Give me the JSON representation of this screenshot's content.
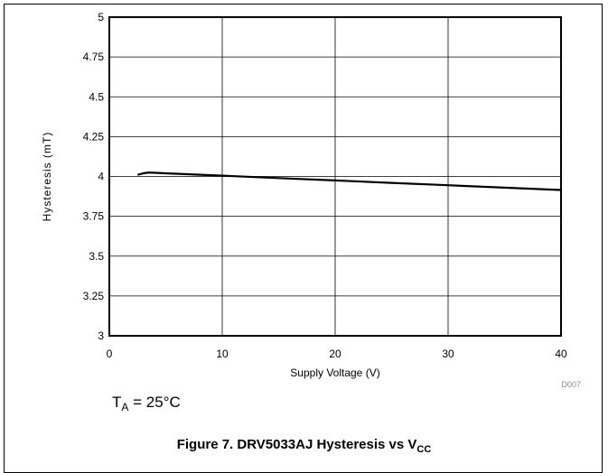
{
  "chart_data": {
    "type": "line",
    "xlabel": "Supply Voltage (V)",
    "ylabel": "Hysteresis (mT)",
    "xlim": [
      0,
      40
    ],
    "ylim": [
      3,
      5
    ],
    "x_ticks": [
      0,
      10,
      20,
      30,
      40
    ],
    "y_ticks": [
      3,
      3.25,
      3.5,
      3.75,
      4,
      4.25,
      4.5,
      4.75,
      5
    ],
    "y_tick_labels": [
      "3",
      "3.25",
      "3.5",
      "3.75",
      "4",
      "4.25",
      "4.5",
      "4.75",
      "5"
    ],
    "grid": true,
    "legend": "none",
    "series": [
      {
        "color": "#000000",
        "x": [
          2.5,
          3.0,
          3.5,
          5,
          10,
          15,
          20,
          25,
          30,
          35,
          40
        ],
        "y": [
          4.01,
          4.02,
          4.025,
          4.02,
          4.005,
          3.99,
          3.975,
          3.96,
          3.945,
          3.93,
          3.915
        ]
      }
    ],
    "code": "D007",
    "annotation": {
      "main": "T",
      "sub": "A",
      "rest": " = 25°C"
    }
  },
  "caption": {
    "prefix": "Figure 7. DRV5033AJ Hysteresis vs V",
    "sub": "CC"
  }
}
